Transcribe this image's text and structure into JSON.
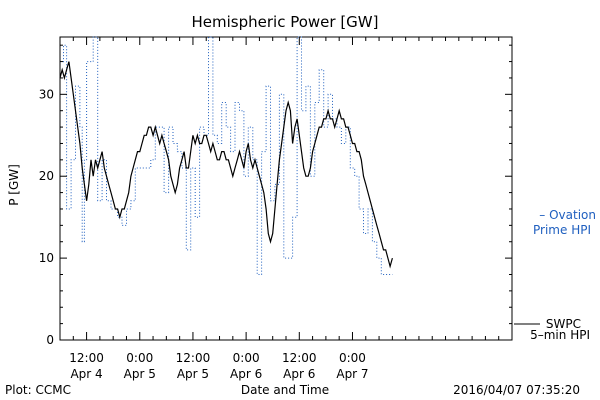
{
  "chart_data": {
    "type": "line",
    "title": "Hemispheric Power [GW]",
    "xlabel": "Date and Time",
    "ylabel": "P [GW]",
    "ylim": [
      0,
      37
    ],
    "x_range_hours_from_start": [
      0,
      102
    ],
    "x_unit": "hours after 2016-04-04 06:00",
    "grid": false,
    "yticks": [
      0,
      10,
      20,
      30
    ],
    "xticks": [
      {
        "h": 6,
        "time": "12:00",
        "date": "Apr 4"
      },
      {
        "h": 18,
        "time": "0:00",
        "date": "Apr 5"
      },
      {
        "h": 30,
        "time": "12:00",
        "date": "Apr 5"
      },
      {
        "h": 42,
        "time": "0:00",
        "date": "Apr 6"
      },
      {
        "h": 54,
        "time": "12:00",
        "date": "Apr 6"
      },
      {
        "h": 66,
        "time": "0:00",
        "date": "Apr 7"
      }
    ],
    "series": [
      {
        "name": "SWPC 5-min HPI",
        "label_lines": [
          "SWPC",
          "5–min HPI"
        ],
        "color": "#000000",
        "style": "solid",
        "points": [
          [
            0.0,
            32
          ],
          [
            0.5,
            33
          ],
          [
            1.0,
            32
          ],
          [
            1.5,
            33
          ],
          [
            2.0,
            34
          ],
          [
            2.5,
            32
          ],
          [
            3.0,
            30
          ],
          [
            3.5,
            28
          ],
          [
            4.0,
            26
          ],
          [
            4.5,
            24
          ],
          [
            5.0,
            21
          ],
          [
            5.5,
            19
          ],
          [
            6.0,
            17
          ],
          [
            6.5,
            19
          ],
          [
            7.0,
            22
          ],
          [
            7.5,
            20
          ],
          [
            8.0,
            22
          ],
          [
            8.5,
            21
          ],
          [
            9.0,
            22
          ],
          [
            9.5,
            23
          ],
          [
            10.0,
            21
          ],
          [
            10.5,
            20
          ],
          [
            11.0,
            19
          ],
          [
            11.5,
            18
          ],
          [
            12.0,
            17
          ],
          [
            12.5,
            16
          ],
          [
            13.0,
            16
          ],
          [
            13.5,
            15
          ],
          [
            14.0,
            16
          ],
          [
            14.5,
            16
          ],
          [
            15.0,
            17
          ],
          [
            15.5,
            18
          ],
          [
            16.0,
            20
          ],
          [
            16.5,
            21
          ],
          [
            17.0,
            22
          ],
          [
            17.5,
            23
          ],
          [
            18.0,
            23
          ],
          [
            18.5,
            24
          ],
          [
            19.0,
            25
          ],
          [
            19.5,
            25
          ],
          [
            20.0,
            26
          ],
          [
            20.5,
            26
          ],
          [
            21.0,
            25
          ],
          [
            21.5,
            26
          ],
          [
            22.0,
            25
          ],
          [
            22.5,
            24
          ],
          [
            23.0,
            25
          ],
          [
            23.5,
            24
          ],
          [
            24.0,
            23
          ],
          [
            24.5,
            22
          ],
          [
            25.0,
            20
          ],
          [
            25.5,
            19
          ],
          [
            26.0,
            18
          ],
          [
            26.5,
            19
          ],
          [
            27.0,
            21
          ],
          [
            27.5,
            22
          ],
          [
            28.0,
            23
          ],
          [
            28.5,
            21
          ],
          [
            29.0,
            21
          ],
          [
            29.5,
            23
          ],
          [
            30.0,
            25
          ],
          [
            30.5,
            24
          ],
          [
            31.0,
            25
          ],
          [
            31.5,
            24
          ],
          [
            32.0,
            24
          ],
          [
            32.5,
            25
          ],
          [
            33.0,
            25
          ],
          [
            33.5,
            24
          ],
          [
            34.0,
            23
          ],
          [
            34.5,
            24
          ],
          [
            35.0,
            23
          ],
          [
            35.5,
            22
          ],
          [
            36.0,
            22
          ],
          [
            36.5,
            23
          ],
          [
            37.0,
            23
          ],
          [
            37.5,
            22
          ],
          [
            38.0,
            22
          ],
          [
            38.5,
            21
          ],
          [
            39.0,
            20
          ],
          [
            39.5,
            21
          ],
          [
            40.0,
            22
          ],
          [
            40.5,
            23
          ],
          [
            41.0,
            22
          ],
          [
            41.5,
            21
          ],
          [
            42.0,
            23
          ],
          [
            42.5,
            24
          ],
          [
            43.0,
            22
          ],
          [
            43.5,
            21
          ],
          [
            44.0,
            22
          ],
          [
            44.5,
            21
          ],
          [
            45.0,
            20
          ],
          [
            45.5,
            19
          ],
          [
            46.0,
            18
          ],
          [
            46.5,
            16
          ],
          [
            47.0,
            13
          ],
          [
            47.5,
            12
          ],
          [
            48.0,
            13
          ],
          [
            48.5,
            16
          ],
          [
            49.0,
            19
          ],
          [
            49.5,
            22
          ],
          [
            50.0,
            24
          ],
          [
            50.5,
            26
          ],
          [
            51.0,
            28
          ],
          [
            51.5,
            29
          ],
          [
            52.0,
            28
          ],
          [
            52.5,
            24
          ],
          [
            53.0,
            26
          ],
          [
            53.5,
            27
          ],
          [
            54.0,
            25
          ],
          [
            54.5,
            23
          ],
          [
            55.0,
            21
          ],
          [
            55.5,
            20
          ],
          [
            56.0,
            20
          ],
          [
            56.5,
            21
          ],
          [
            57.0,
            23
          ],
          [
            57.5,
            24
          ],
          [
            58.0,
            25
          ],
          [
            58.5,
            26
          ],
          [
            59.0,
            26
          ],
          [
            59.5,
            27
          ],
          [
            60.0,
            27
          ],
          [
            60.5,
            28
          ],
          [
            61.0,
            27
          ],
          [
            61.5,
            27
          ],
          [
            62.0,
            26
          ],
          [
            62.5,
            27
          ],
          [
            63.0,
            28
          ],
          [
            63.5,
            27
          ],
          [
            64.0,
            27
          ],
          [
            64.5,
            26
          ],
          [
            65.0,
            26
          ],
          [
            65.5,
            25
          ],
          [
            66.0,
            24
          ],
          [
            66.5,
            24
          ],
          [
            67.0,
            23
          ],
          [
            67.5,
            23
          ],
          [
            68.0,
            22
          ],
          [
            68.5,
            20
          ],
          [
            69.0,
            19
          ],
          [
            69.5,
            18
          ],
          [
            70.0,
            17
          ],
          [
            70.5,
            16
          ],
          [
            71.0,
            15
          ],
          [
            71.5,
            14
          ],
          [
            72.0,
            13
          ],
          [
            72.5,
            12
          ],
          [
            73.0,
            11
          ],
          [
            73.5,
            11
          ],
          [
            74.0,
            10
          ],
          [
            74.5,
            9
          ],
          [
            75.0,
            10
          ]
        ]
      },
      {
        "name": "Ovation Prime HPI",
        "label_lines": [
          "– Ovation",
          "Prime HPI"
        ],
        "color": "#1f5fbf",
        "style": "dotted-step",
        "points": [
          [
            0,
            34
          ],
          [
            0.8,
            36
          ],
          [
            1.5,
            16
          ],
          [
            2.5,
            22
          ],
          [
            3.5,
            31
          ],
          [
            4.5,
            26
          ],
          [
            5.0,
            12
          ],
          [
            5.5,
            22
          ],
          [
            6.0,
            34
          ],
          [
            7.5,
            38
          ],
          [
            8.5,
            17
          ],
          [
            9.5,
            22
          ],
          [
            10.5,
            17
          ],
          [
            11.5,
            16
          ],
          [
            13.0,
            15
          ],
          [
            14.0,
            14
          ],
          [
            15.0,
            16
          ],
          [
            16.0,
            17
          ],
          [
            17.0,
            21
          ],
          [
            18.5,
            21
          ],
          [
            19.5,
            21
          ],
          [
            20.5,
            22
          ],
          [
            21.5,
            26
          ],
          [
            22.5,
            26
          ],
          [
            23.5,
            18
          ],
          [
            24.5,
            26
          ],
          [
            25.5,
            24
          ],
          [
            26.5,
            23
          ],
          [
            27.5,
            21
          ],
          [
            28.5,
            11
          ],
          [
            29.5,
            21
          ],
          [
            30.5,
            15
          ],
          [
            31.5,
            26
          ],
          [
            32.5,
            25
          ],
          [
            33.5,
            38
          ],
          [
            34.5,
            25
          ],
          [
            35.5,
            24
          ],
          [
            36.5,
            29
          ],
          [
            37.5,
            26
          ],
          [
            38.5,
            23
          ],
          [
            39.5,
            29
          ],
          [
            40.5,
            28
          ],
          [
            41.5,
            20
          ],
          [
            42.5,
            26
          ],
          [
            43.5,
            22
          ],
          [
            44.5,
            8
          ],
          [
            45.5,
            23
          ],
          [
            46.5,
            31
          ],
          [
            47.5,
            17
          ],
          [
            48.5,
            19
          ],
          [
            49.5,
            30
          ],
          [
            50.5,
            10
          ],
          [
            51.5,
            10
          ],
          [
            52.5,
            15
          ],
          [
            53.5,
            38
          ],
          [
            54.5,
            28
          ],
          [
            55.5,
            31
          ],
          [
            56.5,
            20
          ],
          [
            57.5,
            29
          ],
          [
            58.5,
            33
          ],
          [
            59.5,
            26
          ],
          [
            60.5,
            30
          ],
          [
            61.5,
            27
          ],
          [
            62.5,
            26
          ],
          [
            63.5,
            24
          ],
          [
            64.5,
            26
          ],
          [
            65.5,
            21
          ],
          [
            66.5,
            20
          ],
          [
            67.5,
            16
          ],
          [
            68.5,
            13
          ],
          [
            69.5,
            16
          ],
          [
            70.5,
            12
          ],
          [
            71.5,
            10
          ],
          [
            72.5,
            8
          ],
          [
            73.5,
            8
          ],
          [
            75,
            8
          ]
        ]
      }
    ]
  },
  "footer": {
    "plot_credit": "Plot: CCMC",
    "timestamp": "2016/04/07 07:35:20"
  }
}
